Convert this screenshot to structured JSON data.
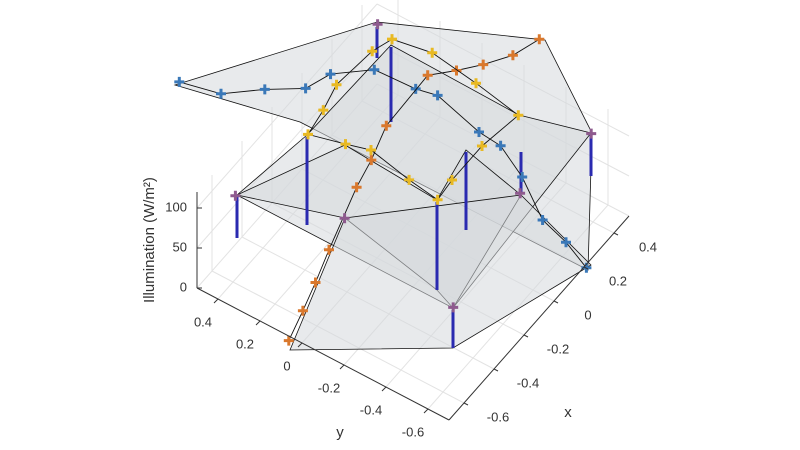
{
  "chart_data": {
    "type": "scatter3d",
    "xlabel": "x",
    "ylabel": "y",
    "zlabel": "Illumination (W/m²)",
    "xlim": [
      -0.7,
      0.5
    ],
    "ylim": [
      -0.7,
      0.5
    ],
    "zlim": [
      0,
      120
    ],
    "xticks": [
      -0.6,
      -0.4,
      -0.2,
      0,
      0.2,
      0.4
    ],
    "yticks": [
      -0.6,
      -0.4,
      -0.2,
      0,
      0.2,
      0.4
    ],
    "zticks": [
      0,
      50,
      100
    ],
    "grid": true,
    "series": [
      {
        "color": "#3a78b8",
        "connect": true,
        "x": [
          -0.23,
          -0.19,
          -0.08,
          0.01,
          0.12,
          0.23,
          0.24,
          0.26,
          0.2,
          0.19,
          0.11,
          -0.02,
          -0.06,
          -0.12
        ],
        "y": [
          0.92,
          0.75,
          0.62,
          0.49,
          0.45,
          0.32,
          0.13,
          0.04,
          -0.2,
          -0.31,
          -0.47,
          -0.66,
          -0.8,
          -0.94
        ],
        "z": [
          100,
          100,
          100,
          100,
          100,
          100,
          100,
          100,
          100,
          100,
          100,
          100,
          100,
          100
        ]
      },
      {
        "color": "#d9782d",
        "connect": true,
        "x": [
          0.7,
          0.58,
          0.48,
          0.4,
          0.32,
          0.03,
          -0.14,
          -0.28,
          -0.59,
          -0.75,
          -0.89,
          -1.04
        ],
        "y": [
          -0.13,
          -0.09,
          -0.02,
          0.05,
          0.13,
          0.12,
          0.07,
          0.04,
          -0.05,
          -0.1,
          -0.14,
          -0.18
        ],
        "z": [
          100,
          100,
          100,
          100,
          100,
          100,
          100,
          100,
          100,
          100,
          100,
          100
        ]
      },
      {
        "color": "#e8b923",
        "connect": true,
        "x": [
          0.39,
          0.42,
          0.39,
          0.35,
          0.15,
          -0.05,
          -0.16,
          -0.14,
          -0.1,
          -0.13,
          -0.17,
          -0.04,
          0.09,
          0.3,
          0.39
        ],
        "y": [
          0.35,
          0.18,
          -0.05,
          -0.28,
          -0.25,
          -0.25,
          -0.26,
          -0.11,
          0.1,
          0.2,
          0.35,
          0.37,
          0.4,
          0.38,
          0.35
        ],
        "z": [
          100,
          100,
          100,
          100,
          100,
          100,
          100,
          100,
          100,
          100,
          100,
          100,
          100,
          100,
          100
        ]
      },
      {
        "color": "#8e5a8e",
        "connect": false,
        "x": [
          0.42,
          0.43,
          -0.57,
          -0.43,
          -0.56,
          0.04
        ],
        "y": [
          0.44,
          -0.57,
          0.41,
          -0.01,
          -0.62,
          -0.51
        ],
        "z": [
          100,
          100,
          100,
          100,
          100,
          100
        ]
      }
    ]
  }
}
